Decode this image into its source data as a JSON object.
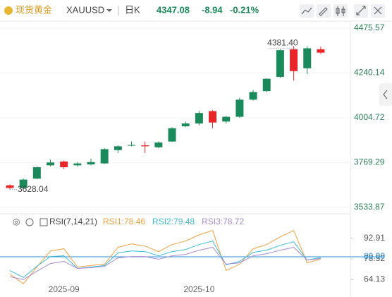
{
  "header": {
    "symbol_name": "现货黄金",
    "symbol": "XAUUSD",
    "period": "日K",
    "price": 4347.08,
    "change": -8.94,
    "change_pct": "-0.21%"
  },
  "chart_data": [
    {
      "type": "candlestick",
      "categories": [
        null,
        null,
        null,
        null,
        "2025-09",
        null,
        null,
        null,
        null,
        null,
        null,
        null,
        null,
        null,
        "2025-10",
        null,
        null,
        null,
        null,
        null,
        null,
        null,
        null,
        null
      ],
      "open": [
        3650,
        3636,
        3685,
        3755,
        3775,
        3755,
        3760,
        3765,
        3835,
        3858,
        3860,
        3850,
        3880,
        3960,
        3975,
        4040,
        3985,
        4010,
        4100,
        4145,
        4220,
        4365,
        4265,
        4365
      ],
      "high": [
        3655,
        3685,
        3748,
        3785,
        3780,
        3772,
        3790,
        3845,
        3860,
        3880,
        3880,
        3880,
        3955,
        3985,
        4040,
        4045,
        4015,
        4110,
        4150,
        4212,
        4365,
        4381.4,
        4380,
        4378
      ],
      "low": [
        3628.04,
        3630,
        3683,
        3750,
        3735,
        3748,
        3755,
        3762,
        3820,
        3855,
        3820,
        3845,
        3878,
        3955,
        3965,
        3950,
        3975,
        4005,
        4095,
        4140,
        4215,
        4200,
        4235,
        4340
      ],
      "close": [
        3636,
        3680,
        3745,
        3770,
        3745,
        3765,
        3772,
        3840,
        3855,
        3862,
        3855,
        3875,
        3950,
        3975,
        4030,
        3980,
        4010,
        4100,
        4140,
        4210,
        4360,
        4250,
        4370,
        4347.08
      ],
      "up_color": "#1b8a5a",
      "down_color": "#e8262a",
      "ylim": [
        3511.6,
        4512.6
      ],
      "yticks": [
        3533.87,
        3769.29,
        4004.72,
        4240.14,
        4475.57
      ],
      "annotations": [
        {
          "label": "4381.40",
          "value": 4381.4
        },
        {
          "label": "3628.04",
          "value": 3628.04
        }
      ],
      "grid": true
    },
    {
      "type": "line",
      "title": "RSI(7,14,21)",
      "categories": [
        null,
        null,
        null,
        null,
        "2025-09",
        null,
        null,
        null,
        null,
        null,
        null,
        null,
        null,
        null,
        "2025-10",
        null,
        null,
        null,
        null,
        null,
        null,
        null,
        null,
        null
      ],
      "series": [
        {
          "name": "RSI1:78.46",
          "color": "#f0a040",
          "values": [
            68.0,
            61.2,
            72.9,
            84.1,
            85.6,
            72.9,
            73.9,
            74.9,
            86.6,
            89.0,
            87.5,
            83.6,
            88.5,
            91.0,
            95.3,
            98.3,
            70.5,
            74.9,
            85.6,
            88.5,
            93.9,
            98.3,
            75.8,
            78.46
          ]
        },
        {
          "name": "RSI2:79.48",
          "color": "#3cbcd6",
          "values": [
            70.5,
            65.6,
            73.4,
            80.2,
            80.7,
            71.9,
            72.9,
            73.9,
            82.7,
            84.1,
            83.6,
            80.7,
            83.6,
            85.1,
            88.5,
            91.0,
            74.4,
            76.8,
            83.1,
            84.6,
            88.0,
            90.5,
            77.8,
            79.48
          ]
        },
        {
          "name": "RSI3:78.72",
          "color": "#a68ad0",
          "values": [
            66.1,
            64.1,
            70.0,
            75.3,
            76.8,
            71.9,
            72.4,
            73.4,
            79.3,
            80.2,
            80.2,
            78.3,
            80.7,
            81.7,
            84.6,
            86.6,
            74.9,
            75.8,
            80.7,
            82.2,
            84.6,
            86.6,
            77.8,
            78.72
          ]
        }
      ],
      "ylim": [
        52,
        110
      ],
      "yticks": [
        64.13,
        78.52,
        {
          "value": 80,
          "label": "80.00"
        },
        92.91
      ],
      "reference_line": 80,
      "reference_color": "#2f8fd0"
    }
  ]
}
